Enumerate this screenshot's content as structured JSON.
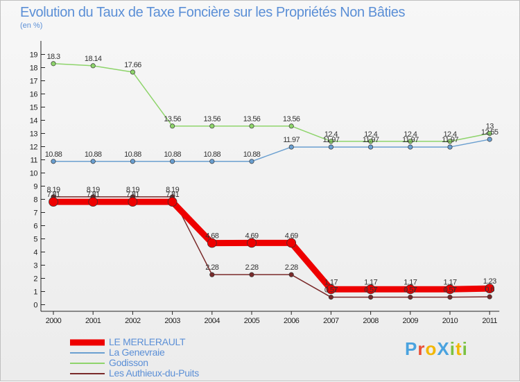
{
  "chart_data": {
    "type": "line",
    "title": "Evolution du Taux de Taxe Foncière sur les Propriétés Non Bâties",
    "subtitle": "(en %)",
    "xlabel": "",
    "ylabel": "(en %)",
    "ylim": [
      0,
      19
    ],
    "yticks": [
      0,
      1,
      2,
      3,
      4,
      5,
      6,
      7,
      8,
      9,
      10,
      11,
      12,
      13,
      14,
      15,
      16,
      17,
      18,
      19
    ],
    "categories": [
      "2000",
      "2001",
      "2002",
      "2003",
      "2004",
      "2005",
      "2006",
      "2007",
      "2008",
      "2009",
      "2010",
      "2011"
    ],
    "series": [
      {
        "name": "LE MERLERAULT",
        "color": "#ee0000",
        "values": [
          7.81,
          7.81,
          7.81,
          7.81,
          4.68,
          4.69,
          4.69,
          1.17,
          1.17,
          1.17,
          1.17,
          1.23
        ],
        "labels": [
          "7.81",
          "7.81",
          "7.81",
          "7.81",
          "4.68",
          "4.69",
          "4.69",
          "1.17",
          "1.17",
          "1.17",
          "1.17",
          "1.23"
        ]
      },
      {
        "name": "La Genevraie",
        "color": "#6a9fd0",
        "values": [
          10.88,
          10.88,
          10.88,
          10.88,
          10.88,
          10.88,
          11.97,
          11.97,
          11.97,
          11.97,
          11.97,
          12.55
        ],
        "labels": [
          "10.88",
          "10.88",
          "10.88",
          "10.88",
          "10.88",
          "10.88",
          "11.97",
          "11.97",
          "11.97",
          "11.97",
          "11.97",
          "12.55"
        ]
      },
      {
        "name": "Godisson",
        "color": "#8ed46b",
        "values": [
          18.3,
          18.14,
          17.66,
          13.56,
          13.56,
          13.56,
          13.56,
          12.4,
          12.4,
          12.4,
          12.4,
          13
        ],
        "labels": [
          "18.3",
          "18.14",
          "17.66",
          "13.56",
          "13.56",
          "13.56",
          "13.56",
          "12.4",
          "12.4",
          "12.4",
          "12.4",
          "13"
        ]
      },
      {
        "name": "Les Authieux-du-Puits",
        "color": "#7a2a2a",
        "values": [
          8.19,
          8.19,
          8.19,
          8.19,
          2.28,
          2.28,
          2.28,
          0.57,
          0.57,
          0.57,
          0.57,
          0.6
        ],
        "labels": [
          "8.19",
          "8.19",
          "8.19",
          "8.19",
          "2.28",
          "2.28",
          "2.28",
          "0.57",
          "0.57",
          "0.57",
          "0.57",
          "0.6"
        ]
      }
    ],
    "legend_position": "bottom-left"
  },
  "logo": {
    "text": "ProXiti",
    "letters": [
      "P",
      "r",
      "o",
      "X",
      "i",
      "t",
      "i"
    ],
    "colors": [
      "#4aa3df",
      "#e94f37",
      "#f2b705",
      "#4aa3df",
      "#7bc142",
      "#f2b705",
      "#7bc142"
    ]
  }
}
